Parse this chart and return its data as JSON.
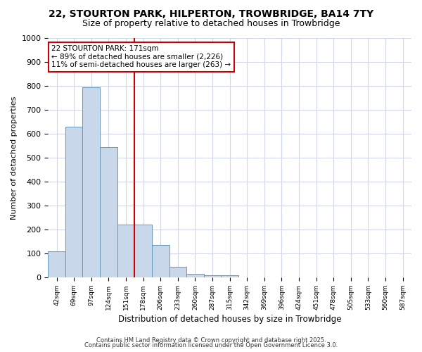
{
  "title1": "22, STOURTON PARK, HILPERTON, TROWBRIDGE, BA14 7TY",
  "title2": "Size of property relative to detached houses in Trowbridge",
  "xlabel": "Distribution of detached houses by size in Trowbridge",
  "ylabel": "Number of detached properties",
  "categories": [
    "42sqm",
    "69sqm",
    "97sqm",
    "124sqm",
    "151sqm",
    "178sqm",
    "206sqm",
    "233sqm",
    "260sqm",
    "287sqm",
    "315sqm",
    "342sqm",
    "369sqm",
    "396sqm",
    "424sqm",
    "451sqm",
    "478sqm",
    "505sqm",
    "533sqm",
    "560sqm",
    "587sqm"
  ],
  "values": [
    110,
    630,
    795,
    545,
    220,
    220,
    135,
    45,
    15,
    10,
    8,
    0,
    0,
    0,
    0,
    0,
    0,
    0,
    0,
    0,
    0
  ],
  "bar_color": "#c8d8ea",
  "bar_edgecolor": "#6699bb",
  "red_line_color": "#cc0000",
  "red_line_x": 4.5,
  "annotation_text": "22 STOURTON PARK: 171sqm\n← 89% of detached houses are smaller (2,226)\n11% of semi-detached houses are larger (263) →",
  "annotation_box_facecolor": "#ffffff",
  "annotation_box_edgecolor": "#cc0000",
  "ylim": [
    0,
    1000
  ],
  "yticks": [
    0,
    100,
    200,
    300,
    400,
    500,
    600,
    700,
    800,
    900,
    1000
  ],
  "background_color": "#ffffff",
  "grid_color": "#d0d8e8",
  "footer1": "Contains HM Land Registry data © Crown copyright and database right 2025.",
  "footer2": "Contains public sector information licensed under the Open Government Licence 3.0.",
  "title_fontsize": 10,
  "subtitle_fontsize": 9
}
